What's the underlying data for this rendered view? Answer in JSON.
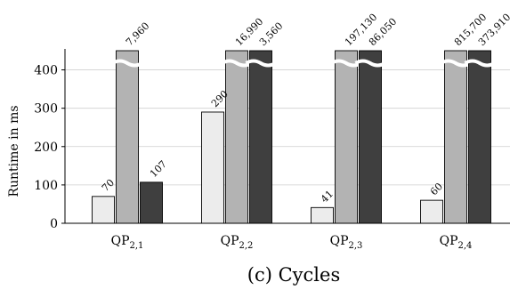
{
  "chart_data": {
    "type": "bar",
    "categories": [
      {
        "base": "QP",
        "sub": "2,1"
      },
      {
        "base": "QP",
        "sub": "2,2"
      },
      {
        "base": "QP",
        "sub": "2,3"
      },
      {
        "base": "QP",
        "sub": "2,4"
      }
    ],
    "series": [
      {
        "values": [
          70,
          290,
          41,
          60
        ],
        "labels": [
          "70",
          "290",
          "41",
          "60"
        ],
        "color": "#ececec"
      },
      {
        "values": [
          7960,
          16990,
          197130,
          815700
        ],
        "labels": [
          "7,960",
          "16,990",
          "197,130",
          "815,700"
        ],
        "color": "#b3b3b3"
      },
      {
        "values": [
          107,
          3560,
          86050,
          373910
        ],
        "labels": [
          "107",
          "3,560",
          "86,050",
          "373,910"
        ],
        "color": "#3f3f3f"
      }
    ],
    "ylabel": "Runtime in ms",
    "ylim": [
      0,
      450
    ],
    "yticks": [
      0,
      100,
      200,
      300,
      400
    ],
    "y_axis_break": true,
    "grid": true,
    "caption": "(c) Cycles"
  }
}
